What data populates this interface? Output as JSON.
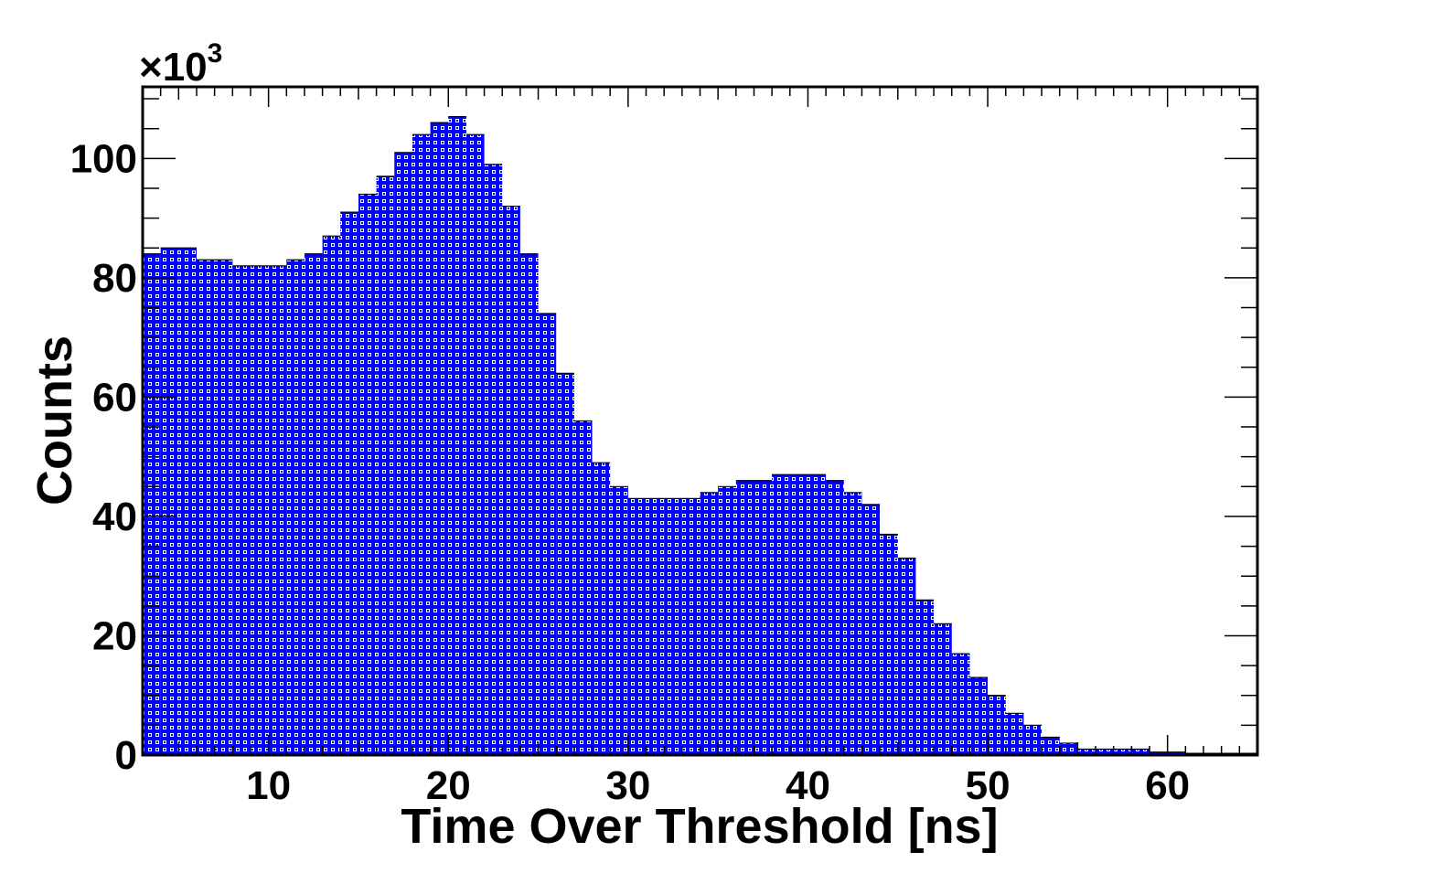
{
  "chart_data": {
    "type": "bar",
    "title": "",
    "xlabel": "Time Over Threshold [ns]",
    "ylabel": "Counts",
    "y_multiplier_label": "×10",
    "y_multiplier_exponent": "3",
    "xlim": [
      3,
      65
    ],
    "ylim": [
      0,
      112
    ],
    "x_ticks": [
      10,
      20,
      30,
      40,
      50,
      60
    ],
    "y_ticks": [
      0,
      20,
      40,
      60,
      80,
      100
    ],
    "bin_width": 1,
    "fill_color": "#0000ff",
    "pattern": "checkered-hatch",
    "grid": false,
    "legend": "none",
    "series": [
      {
        "x_start": [
          3,
          4,
          5,
          6,
          7,
          8,
          9,
          10,
          11,
          12,
          13,
          14,
          15,
          16,
          17,
          18,
          19,
          20,
          21,
          22,
          23,
          24,
          25,
          26,
          27,
          28,
          29,
          30,
          31,
          32,
          33,
          34,
          35,
          36,
          37,
          38,
          39,
          40,
          41,
          42,
          43,
          44,
          45,
          46,
          47,
          48,
          49,
          50,
          51,
          52,
          53,
          54,
          55,
          56,
          57,
          58,
          59,
          60,
          61,
          62,
          63,
          64
        ],
        "values": [
          84,
          85,
          85,
          83,
          83,
          82,
          82,
          82,
          83,
          84,
          87,
          91,
          94,
          97,
          101,
          104,
          106,
          107,
          104,
          99,
          92,
          84,
          74,
          64,
          56,
          49,
          45,
          43,
          43,
          43,
          43,
          44,
          45,
          46,
          46,
          47,
          47,
          47,
          46,
          44,
          42,
          37,
          33,
          26,
          22,
          17,
          13,
          10,
          7,
          5,
          3,
          2,
          1,
          1,
          1,
          1,
          0.5,
          0.5,
          0.3,
          0.3,
          0.3,
          0.3
        ]
      }
    ]
  }
}
